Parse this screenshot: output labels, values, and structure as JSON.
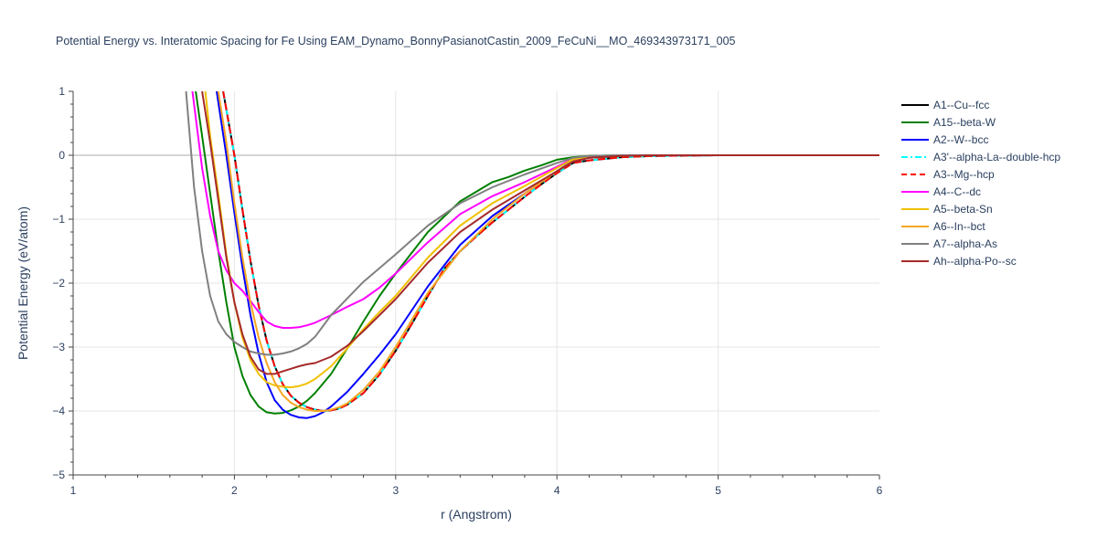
{
  "chart_data": {
    "type": "line",
    "title": "Potential Energy vs. Interatomic Spacing for Fe Using EAM_Dynamo_BonnyPasianotCastin_2009_FeCuNi__MO_469343973171_005",
    "xlabel": "r (Angstrom)",
    "ylabel": "Potential Energy (eV/atom)",
    "xlim": [
      1,
      6
    ],
    "ylim": [
      -5,
      1
    ],
    "x_ticks": [
      "1",
      "2",
      "3",
      "4",
      "5",
      "6"
    ],
    "y_ticks": [
      "−5",
      "−4",
      "−3",
      "−2",
      "−1",
      "0",
      "1"
    ],
    "grid": true,
    "legend_position": "right",
    "series": [
      {
        "name": "A1--Cu--fcc",
        "color": "#000000",
        "dash": "solid",
        "x": [
          1.93,
          2.0,
          2.05,
          2.1,
          2.15,
          2.2,
          2.25,
          2.3,
          2.35,
          2.4,
          2.45,
          2.5,
          2.55,
          2.6,
          2.65,
          2.7,
          2.8,
          2.9,
          3.0,
          3.1,
          3.2,
          3.3,
          3.4,
          3.5,
          3.6,
          3.7,
          3.8,
          3.9,
          4.0,
          4.1,
          4.2,
          4.4,
          4.6,
          5.0,
          5.5,
          6.0
        ],
        "y": [
          1.0,
          0.0,
          -0.85,
          -1.65,
          -2.35,
          -2.9,
          -3.3,
          -3.58,
          -3.76,
          -3.87,
          -3.94,
          -3.98,
          -4.0,
          -3.99,
          -3.96,
          -3.9,
          -3.72,
          -3.43,
          -3.06,
          -2.64,
          -2.2,
          -1.78,
          -1.5,
          -1.27,
          -1.05,
          -0.85,
          -0.65,
          -0.46,
          -0.28,
          -0.12,
          -0.08,
          -0.03,
          -0.01,
          0.0,
          0.0,
          0.0
        ]
      },
      {
        "name": "A15--beta-W",
        "color": "#008000",
        "dash": "solid",
        "x": [
          1.76,
          1.8,
          1.85,
          1.9,
          1.95,
          2.0,
          2.05,
          2.1,
          2.15,
          2.2,
          2.25,
          2.3,
          2.35,
          2.4,
          2.45,
          2.5,
          2.6,
          2.7,
          2.8,
          2.9,
          3.0,
          3.2,
          3.4,
          3.6,
          3.7,
          3.8,
          3.9,
          4.0,
          4.1,
          4.2,
          4.4,
          4.6,
          5.0,
          6.0
        ],
        "y": [
          1.0,
          0.3,
          -0.6,
          -1.5,
          -2.3,
          -3.0,
          -3.45,
          -3.75,
          -3.93,
          -4.02,
          -4.04,
          -4.03,
          -3.99,
          -3.93,
          -3.84,
          -3.72,
          -3.42,
          -3.02,
          -2.6,
          -2.2,
          -1.85,
          -1.2,
          -0.72,
          -0.42,
          -0.34,
          -0.24,
          -0.16,
          -0.07,
          -0.03,
          -0.01,
          0.0,
          0.0,
          0.0,
          0.0
        ]
      },
      {
        "name": "A2--W--bcc",
        "color": "#0000ff",
        "dash": "solid",
        "x": [
          1.89,
          1.95,
          2.0,
          2.05,
          2.1,
          2.15,
          2.2,
          2.25,
          2.3,
          2.35,
          2.4,
          2.45,
          2.5,
          2.55,
          2.6,
          2.7,
          2.8,
          2.9,
          3.0,
          3.2,
          3.4,
          3.6,
          3.8,
          4.0,
          4.1,
          4.2,
          4.4,
          4.6,
          5.0,
          6.0
        ],
        "y": [
          1.0,
          0.0,
          -0.9,
          -1.75,
          -2.5,
          -3.1,
          -3.55,
          -3.83,
          -3.98,
          -4.06,
          -4.1,
          -4.11,
          -4.08,
          -4.02,
          -3.93,
          -3.7,
          -3.42,
          -3.12,
          -2.8,
          -2.05,
          -1.4,
          -0.95,
          -0.6,
          -0.25,
          -0.08,
          -0.04,
          -0.01,
          0.0,
          0.0,
          0.0
        ]
      },
      {
        "name": "A3'--alpha-La--double-hcp",
        "color": "#00ffff",
        "dash": "dashdot",
        "x": [
          1.93,
          2.0,
          2.05,
          2.1,
          2.15,
          2.2,
          2.25,
          2.3,
          2.35,
          2.4,
          2.45,
          2.5,
          2.55,
          2.6,
          2.65,
          2.7,
          2.8,
          2.9,
          3.0,
          3.1,
          3.2,
          3.3,
          3.4,
          3.5,
          3.6,
          3.7,
          3.8,
          3.9,
          4.0,
          4.1,
          4.2,
          4.4,
          4.6,
          5.0,
          5.5,
          6.0
        ],
        "y": [
          1.0,
          0.0,
          -0.85,
          -1.65,
          -2.35,
          -2.9,
          -3.3,
          -3.58,
          -3.76,
          -3.87,
          -3.94,
          -3.98,
          -4.0,
          -3.99,
          -3.96,
          -3.9,
          -3.72,
          -3.43,
          -3.06,
          -2.64,
          -2.2,
          -1.78,
          -1.5,
          -1.27,
          -1.05,
          -0.85,
          -0.65,
          -0.46,
          -0.28,
          -0.12,
          -0.08,
          -0.03,
          -0.01,
          0.0,
          0.0,
          0.0
        ]
      },
      {
        "name": "A3--Mg--hcp",
        "color": "#ff0000",
        "dash": "dash",
        "x": [
          1.93,
          2.0,
          2.05,
          2.1,
          2.15,
          2.2,
          2.25,
          2.3,
          2.35,
          2.4,
          2.45,
          2.5,
          2.55,
          2.6,
          2.65,
          2.7,
          2.8,
          2.9,
          3.0,
          3.1,
          3.2,
          3.3,
          3.4,
          3.5,
          3.6,
          3.7,
          3.8,
          3.9,
          4.0,
          4.1,
          4.2,
          4.4,
          4.6,
          5.0,
          5.5,
          6.0
        ],
        "y": [
          1.0,
          0.0,
          -0.85,
          -1.65,
          -2.35,
          -2.9,
          -3.3,
          -3.58,
          -3.76,
          -3.87,
          -3.94,
          -3.98,
          -4.0,
          -3.99,
          -3.96,
          -3.9,
          -3.72,
          -3.43,
          -3.06,
          -2.64,
          -2.2,
          -1.78,
          -1.5,
          -1.27,
          -1.05,
          -0.85,
          -0.65,
          -0.46,
          -0.28,
          -0.12,
          -0.08,
          -0.03,
          -0.01,
          0.0,
          0.0,
          0.0
        ]
      },
      {
        "name": "A4--C--dc",
        "color": "#ff00ff",
        "dash": "solid",
        "x": [
          1.74,
          1.8,
          1.85,
          1.9,
          1.95,
          2.0,
          2.05,
          2.1,
          2.15,
          2.2,
          2.25,
          2.3,
          2.35,
          2.4,
          2.45,
          2.5,
          2.6,
          2.7,
          2.8,
          2.9,
          3.0,
          3.2,
          3.4,
          3.6,
          3.8,
          4.0,
          4.1,
          4.2,
          4.4,
          4.6,
          5.0,
          6.0
        ],
        "y": [
          1.0,
          -0.2,
          -0.95,
          -1.5,
          -1.8,
          -2.0,
          -2.12,
          -2.28,
          -2.45,
          -2.6,
          -2.67,
          -2.7,
          -2.7,
          -2.69,
          -2.66,
          -2.62,
          -2.5,
          -2.37,
          -2.25,
          -2.07,
          -1.85,
          -1.36,
          -0.92,
          -0.64,
          -0.42,
          -0.18,
          -0.05,
          -0.02,
          0.0,
          0.0,
          0.0,
          0.0
        ]
      },
      {
        "name": "A5--beta-Sn",
        "color": "#f0c000",
        "dash": "solid",
        "x": [
          1.82,
          1.85,
          1.9,
          1.95,
          2.0,
          2.05,
          2.1,
          2.15,
          2.2,
          2.25,
          2.3,
          2.35,
          2.4,
          2.45,
          2.5,
          2.6,
          2.7,
          2.8,
          2.9,
          3.0,
          3.2,
          3.4,
          3.6,
          3.8,
          4.0,
          4.1,
          4.2,
          4.4,
          4.6,
          5.0,
          6.0
        ],
        "y": [
          1.0,
          0.3,
          -0.6,
          -1.55,
          -2.3,
          -2.85,
          -3.2,
          -3.42,
          -3.55,
          -3.6,
          -3.62,
          -3.63,
          -3.61,
          -3.57,
          -3.5,
          -3.3,
          -3.02,
          -2.72,
          -2.45,
          -2.2,
          -1.6,
          -1.1,
          -0.75,
          -0.48,
          -0.2,
          -0.06,
          -0.02,
          0.0,
          0.0,
          0.0,
          0.0
        ]
      },
      {
        "name": "A6--In--bct",
        "color": "#f5a623",
        "dash": "solid",
        "x": [
          1.9,
          1.95,
          2.0,
          2.05,
          2.1,
          2.15,
          2.2,
          2.25,
          2.3,
          2.35,
          2.4,
          2.45,
          2.5,
          2.55,
          2.6,
          2.65,
          2.7,
          2.8,
          2.9,
          3.0,
          3.2,
          3.4,
          3.6,
          3.8,
          4.0,
          4.1,
          4.2,
          4.4,
          4.6,
          5.0,
          6.0
        ],
        "y": [
          1.0,
          0.2,
          -0.75,
          -1.6,
          -2.3,
          -2.85,
          -3.25,
          -3.55,
          -3.75,
          -3.87,
          -3.94,
          -3.98,
          -4.0,
          -4.0,
          -3.98,
          -3.94,
          -3.88,
          -3.67,
          -3.38,
          -3.0,
          -2.15,
          -1.5,
          -1.0,
          -0.6,
          -0.25,
          -0.09,
          -0.04,
          -0.01,
          0.0,
          0.0,
          0.0
        ]
      },
      {
        "name": "A7--alpha-As",
        "color": "#808080",
        "dash": "solid",
        "x": [
          1.7,
          1.75,
          1.8,
          1.85,
          1.9,
          1.95,
          2.0,
          2.05,
          2.1,
          2.15,
          2.2,
          2.25,
          2.3,
          2.35,
          2.4,
          2.45,
          2.5,
          2.6,
          2.8,
          3.0,
          3.2,
          3.4,
          3.6,
          3.8,
          4.0,
          4.1,
          4.2,
          4.4,
          4.6,
          5.0,
          6.0
        ],
        "y": [
          1.0,
          -0.5,
          -1.5,
          -2.2,
          -2.6,
          -2.8,
          -2.92,
          -3.0,
          -3.07,
          -3.1,
          -3.12,
          -3.12,
          -3.1,
          -3.07,
          -3.02,
          -2.95,
          -2.84,
          -2.5,
          -1.98,
          -1.55,
          -1.1,
          -0.75,
          -0.5,
          -0.3,
          -0.12,
          -0.04,
          -0.01,
          0.0,
          0.0,
          0.0,
          0.0
        ]
      },
      {
        "name": "Ah--alpha-Po--sc",
        "color": "#a52a2a",
        "dash": "solid",
        "x": [
          1.8,
          1.85,
          1.9,
          1.95,
          2.0,
          2.05,
          2.1,
          2.15,
          2.2,
          2.25,
          2.3,
          2.35,
          2.4,
          2.45,
          2.5,
          2.6,
          2.7,
          2.8,
          2.9,
          3.0,
          3.2,
          3.4,
          3.6,
          3.8,
          4.0,
          4.1,
          4.2,
          4.4,
          4.6,
          5.0,
          6.0
        ],
        "y": [
          1.0,
          0.2,
          -0.7,
          -1.6,
          -2.3,
          -2.8,
          -3.15,
          -3.35,
          -3.42,
          -3.42,
          -3.38,
          -3.34,
          -3.3,
          -3.27,
          -3.25,
          -3.15,
          -2.98,
          -2.75,
          -2.5,
          -2.25,
          -1.68,
          -1.2,
          -0.85,
          -0.55,
          -0.25,
          -0.1,
          -0.04,
          -0.01,
          0.0,
          0.0,
          0.0
        ]
      }
    ]
  }
}
